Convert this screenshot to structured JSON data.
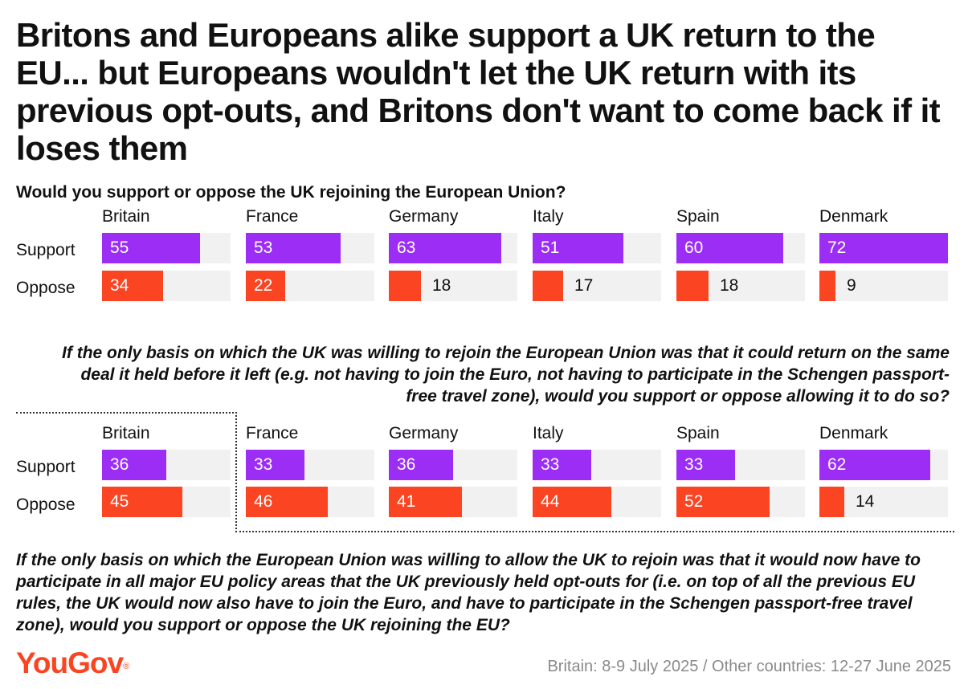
{
  "title": "Britons and Europeans alike support a UK return to the EU... but Europeans wouldn't let the UK return with its previous opt-outs, and Britons don't want to come back if it loses them",
  "colors": {
    "support": "#9b2df5",
    "oppose": "#fa4422",
    "track": "#f1f1f1",
    "logo": "#fa4422"
  },
  "chart_data": [
    {
      "type": "bar",
      "title": "Would you support or oppose the UK rejoining the European Union?",
      "categories": [
        "Britain",
        "France",
        "Germany",
        "Italy",
        "Spain",
        "Denmark"
      ],
      "series": [
        {
          "name": "Support",
          "values": [
            55,
            53,
            63,
            51,
            60,
            72
          ]
        },
        {
          "name": "Oppose",
          "values": [
            34,
            22,
            18,
            17,
            18,
            9
          ]
        }
      ],
      "ylim": [
        0,
        72
      ]
    },
    {
      "type": "bar",
      "title": "If the only basis on which the UK was willing to rejoin the European Union was that it could return on the same deal it held before it left (e.g. not having to join the Euro, not having to participate in the Schengen passport-free travel zone), would you support or oppose allowing it to do so?",
      "categories": [
        "Britain",
        "France",
        "Germany",
        "Italy",
        "Spain",
        "Denmark"
      ],
      "series": [
        {
          "name": "Support",
          "values": [
            36,
            33,
            36,
            33,
            33,
            62
          ]
        },
        {
          "name": "Oppose",
          "values": [
            45,
            46,
            41,
            44,
            52,
            14
          ]
        }
      ],
      "ylim": [
        0,
        72
      ]
    }
  ],
  "third_question": "If the only basis on which the European Union was willing to allow the UK to rejoin was that it would now have to participate in all major EU policy areas that the UK previously held opt-outs for (i.e. on top of all the previous EU rules, the UK would now also have to join the Euro, and have to participate in the Schengen passport-free travel zone), would you support or oppose the UK rejoining the EU?",
  "footer": {
    "logo_text": "YouGov",
    "logo_mark": "®",
    "source": "Britain: 8-9 July 2025 / Other countries: 12-27 June 2025"
  }
}
